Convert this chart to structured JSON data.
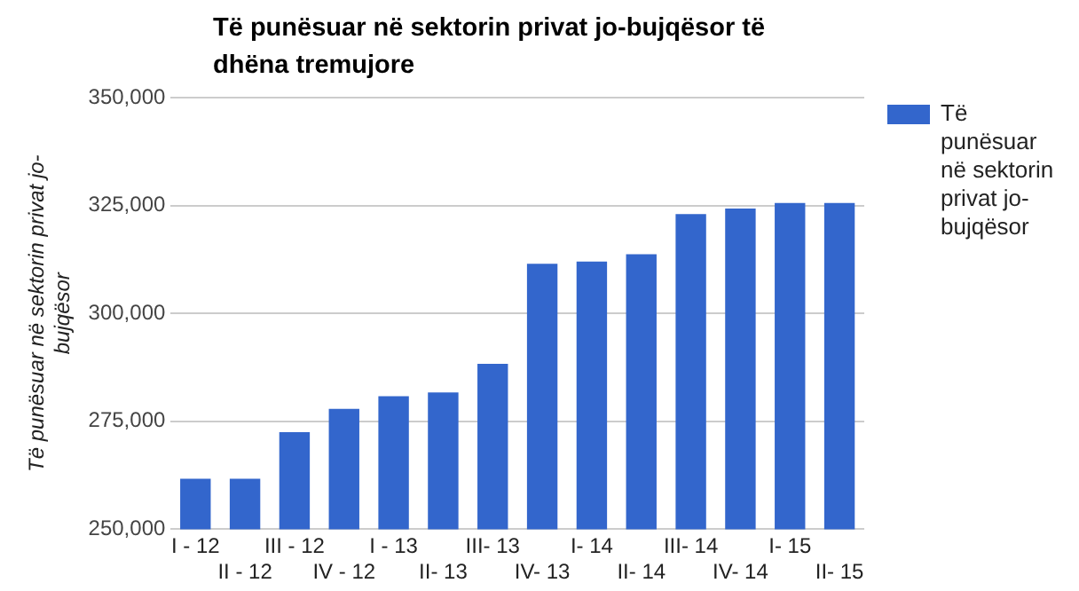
{
  "chart_data": {
    "type": "bar",
    "title": "Të punësuar në sektorin privat jo-bujqësor të dhëna tremujore",
    "ylabel": "Të punësuar në sektorin privat jo-bujqësor",
    "categories": [
      "I - 12",
      "II - 12",
      "III - 12",
      "IV - 12",
      "I - 13",
      "II- 13",
      "III- 13",
      "IV- 13",
      "I- 14",
      "II- 14",
      "III- 14",
      "IV- 14",
      "I- 15",
      "II- 15"
    ],
    "series": [
      {
        "name": "Të punësuar në sektorin privat jo-bujqësor",
        "color": "#3366cc",
        "values": [
          261700,
          261700,
          272500,
          277900,
          280800,
          281700,
          288300,
          311500,
          312000,
          313700,
          323000,
          324300,
          325600,
          325600
        ]
      }
    ],
    "ylim": [
      250000,
      350000
    ],
    "yticks": [
      {
        "value": 250000,
        "label": "250,000"
      },
      {
        "value": 275000,
        "label": "275,000"
      },
      {
        "value": 300000,
        "label": "300,000"
      },
      {
        "value": 325000,
        "label": "325,000"
      },
      {
        "value": 350000,
        "label": "350,000"
      }
    ],
    "grid": "y",
    "legend": "right"
  }
}
